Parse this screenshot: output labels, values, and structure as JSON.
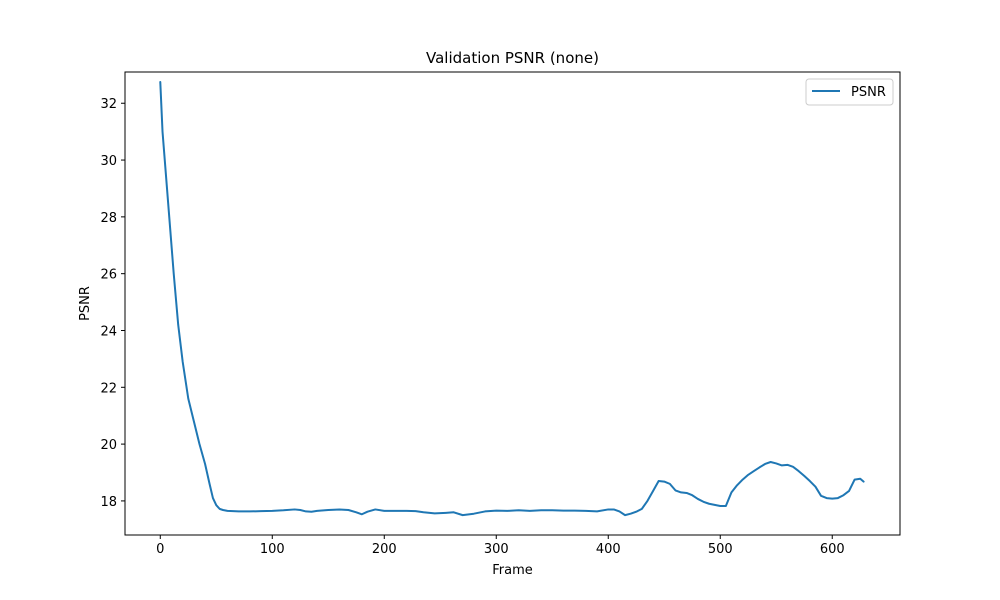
{
  "chart_data": {
    "type": "line",
    "title": "Validation PSNR (none)",
    "xlabel": "Frame",
    "ylabel": "PSNR",
    "xlim": [
      -31.5,
      660.5
    ],
    "ylim": [
      16.8,
      33.1
    ],
    "xticks": [
      0,
      100,
      200,
      300,
      400,
      500,
      600
    ],
    "yticks": [
      18,
      20,
      22,
      24,
      26,
      28,
      30,
      32
    ],
    "grid": false,
    "legend_position": "top-right",
    "series": [
      {
        "name": "PSNR",
        "color": "#1f77b4",
        "x": [
          0,
          2,
          5,
          8,
          12,
          16,
          20,
          25,
          30,
          35,
          40,
          44,
          47,
          50,
          53,
          56,
          60,
          65,
          70,
          80,
          90,
          100,
          110,
          120,
          125,
          130,
          135,
          140,
          150,
          160,
          168,
          175,
          180,
          185,
          192,
          200,
          210,
          220,
          228,
          235,
          245,
          255,
          262,
          270,
          280,
          290,
          300,
          310,
          320,
          330,
          340,
          350,
          360,
          370,
          380,
          390,
          400,
          405,
          410,
          415,
          420,
          425,
          430,
          435,
          440,
          445,
          450,
          455,
          460,
          465,
          470,
          475,
          480,
          485,
          490,
          495,
          500,
          505,
          510,
          515,
          520,
          525,
          530,
          535,
          540,
          545,
          550,
          555,
          560,
          565,
          570,
          575,
          580,
          585,
          590,
          595,
          600,
          605,
          610,
          615,
          620,
          625,
          628
        ],
        "y": [
          32.75,
          31.0,
          29.5,
          28.0,
          26.0,
          24.2,
          22.9,
          21.6,
          20.8,
          20.0,
          19.3,
          18.6,
          18.1,
          17.85,
          17.72,
          17.68,
          17.65,
          17.64,
          17.63,
          17.63,
          17.64,
          17.65,
          17.67,
          17.7,
          17.68,
          17.63,
          17.62,
          17.65,
          17.68,
          17.7,
          17.68,
          17.6,
          17.53,
          17.62,
          17.7,
          17.65,
          17.65,
          17.65,
          17.64,
          17.6,
          17.56,
          17.58,
          17.6,
          17.5,
          17.55,
          17.63,
          17.66,
          17.65,
          17.67,
          17.65,
          17.67,
          17.67,
          17.66,
          17.66,
          17.65,
          17.63,
          17.7,
          17.7,
          17.63,
          17.5,
          17.55,
          17.62,
          17.72,
          18.0,
          18.35,
          18.7,
          18.68,
          18.6,
          18.37,
          18.3,
          18.28,
          18.2,
          18.07,
          17.97,
          17.9,
          17.86,
          17.82,
          17.82,
          18.3,
          18.55,
          18.75,
          18.92,
          19.05,
          19.18,
          19.3,
          19.37,
          19.32,
          19.25,
          19.27,
          19.2,
          19.05,
          18.88,
          18.7,
          18.5,
          18.18,
          18.1,
          18.08,
          18.1,
          18.2,
          18.35,
          18.75,
          18.78,
          18.68
        ]
      }
    ]
  }
}
